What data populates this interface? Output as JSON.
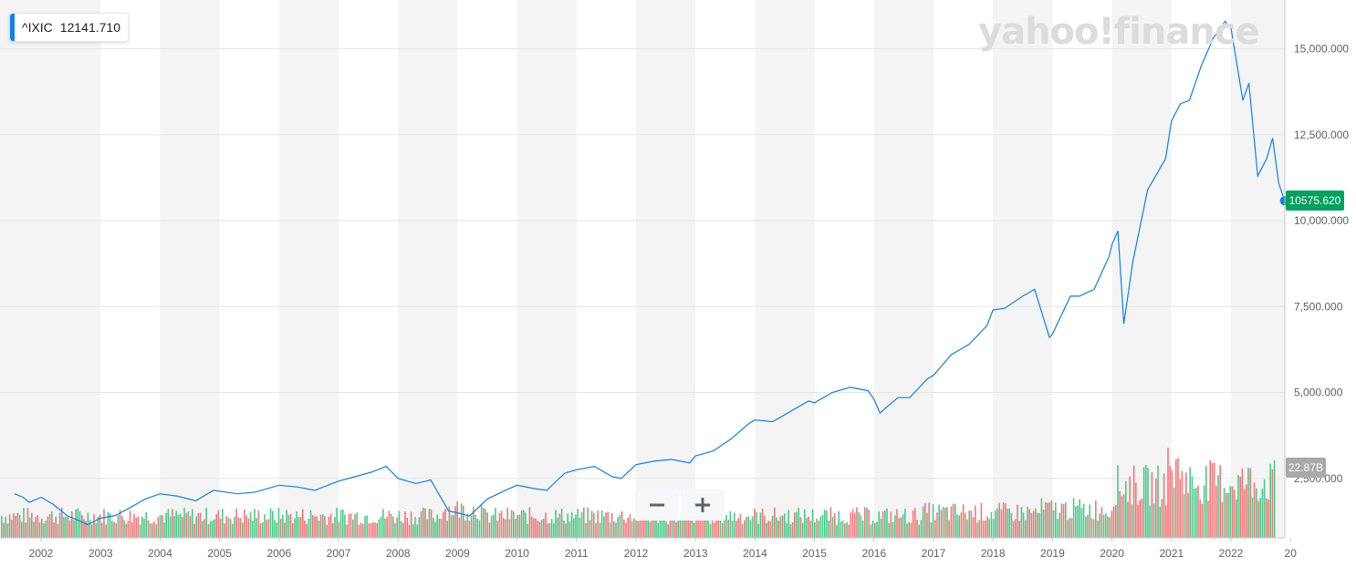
{
  "legend": {
    "symbol": "^IXIC",
    "value": "12141.710"
  },
  "watermark": "yahoo!finance",
  "zoom": {
    "minus": "−",
    "plus": "+"
  },
  "colors": {
    "line": "#0b82ee",
    "up_volume": "#3bc47f",
    "down_volume": "#f06a6a",
    "band": "#f4f4f5",
    "last_price": "#00a25d",
    "volume_tag": "#a8a9aa"
  },
  "last_price_label": "10575.620",
  "volume_label": "22.87B",
  "chart_data": {
    "type": "line",
    "title": "",
    "xlabel": "",
    "ylabel": "",
    "ylim": [
      0,
      16500
    ],
    "grid": true,
    "y_ticks": [
      2500,
      5000,
      7500,
      10000,
      12500,
      15000
    ],
    "y_tick_labels": [
      "2,500.000",
      "5,000.000",
      "7,500.000",
      "10,000.000",
      "12,500.000",
      "15,000.000"
    ],
    "x_ticks": [
      "2002",
      "2003",
      "2004",
      "2005",
      "2006",
      "2007",
      "2008",
      "2009",
      "2010",
      "2011",
      "2012",
      "2013",
      "2014",
      "2015",
      "2016",
      "2017",
      "2018",
      "2019",
      "2020",
      "2021",
      "2022",
      "20"
    ],
    "series": [
      {
        "name": "^IXIC",
        "x": [
          2001.55,
          2001.7,
          2001.8,
          2002.0,
          2002.2,
          2002.45,
          2002.6,
          2002.78,
          2003.0,
          2003.25,
          2003.5,
          2003.75,
          2004.0,
          2004.3,
          2004.6,
          2004.9,
          2005.3,
          2005.6,
          2006.0,
          2006.3,
          2006.6,
          2007.0,
          2007.3,
          2007.55,
          2007.8,
          2008.0,
          2008.3,
          2008.55,
          2008.7,
          2008.85,
          2009.0,
          2009.2,
          2009.5,
          2009.8,
          2010.0,
          2010.3,
          2010.5,
          2010.8,
          2011.0,
          2011.3,
          2011.6,
          2011.75,
          2012.0,
          2012.3,
          2012.6,
          2012.9,
          2013.0,
          2013.3,
          2013.6,
          2013.9,
          2014.0,
          2014.3,
          2014.6,
          2014.9,
          2015.0,
          2015.3,
          2015.6,
          2015.9,
          2016.0,
          2016.1,
          2016.4,
          2016.6,
          2016.9,
          2017.0,
          2017.3,
          2017.6,
          2017.9,
          2018.0,
          2018.2,
          2018.5,
          2018.7,
          2018.95,
          2019.0,
          2019.3,
          2019.45,
          2019.7,
          2019.95,
          2020.0,
          2020.1,
          2020.2,
          2020.35,
          2020.6,
          2020.7,
          2020.9,
          2021.0,
          2021.15,
          2021.3,
          2021.5,
          2021.7,
          2021.9,
          2022.0,
          2022.2,
          2022.3,
          2022.45,
          2022.6,
          2022.7,
          2022.8,
          2022.9
        ],
        "y": [
          2050,
          1950,
          1800,
          1950,
          1750,
          1400,
          1300,
          1150,
          1340,
          1420,
          1650,
          1900,
          2050,
          1980,
          1850,
          2150,
          2050,
          2100,
          2300,
          2250,
          2150,
          2420,
          2560,
          2680,
          2850,
          2500,
          2350,
          2450,
          2000,
          1550,
          1500,
          1400,
          1900,
          2150,
          2300,
          2200,
          2150,
          2650,
          2750,
          2850,
          2550,
          2500,
          2900,
          3000,
          3050,
          2950,
          3150,
          3300,
          3650,
          4100,
          4200,
          4150,
          4450,
          4750,
          4700,
          5000,
          5150,
          5050,
          4800,
          4400,
          4850,
          4850,
          5400,
          5500,
          6100,
          6400,
          6950,
          7400,
          7450,
          7800,
          8000,
          6600,
          6700,
          7800,
          7800,
          8000,
          8950,
          9300,
          9700,
          7000,
          8800,
          10900,
          11200,
          11800,
          12900,
          13400,
          13500,
          14500,
          15300,
          15800,
          15600,
          13500,
          14000,
          11300,
          11800,
          12400,
          11100,
          10575.62
        ]
      }
    ],
    "volume_axis_label": "22.87B",
    "last_price": 10575.62
  }
}
